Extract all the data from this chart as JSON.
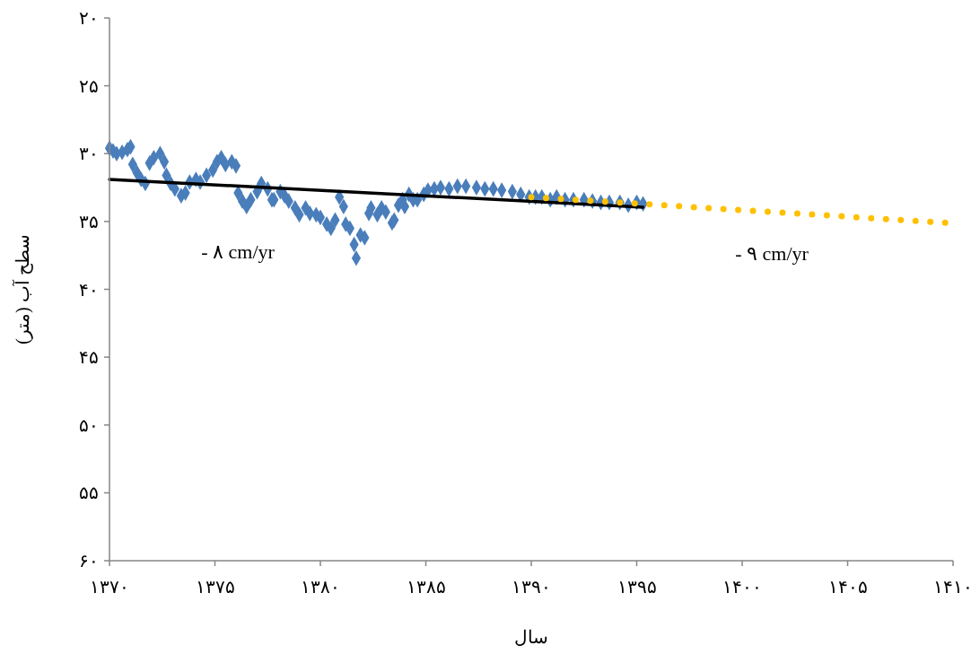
{
  "chart_data": {
    "type": "scatter",
    "xlabel": "سال",
    "ylabel": "سطح آب (متر)",
    "xlim": [
      1370,
      1410
    ],
    "ylim": [
      60,
      20
    ],
    "xticks": [
      {
        "value": 1370,
        "label": "۱۳۷۰"
      },
      {
        "value": 1375,
        "label": "۱۳۷۵"
      },
      {
        "value": 1380,
        "label": "۱۳۸۰"
      },
      {
        "value": 1385,
        "label": "۱۳۸۵"
      },
      {
        "value": 1390,
        "label": "۱۳۹۰"
      },
      {
        "value": 1395,
        "label": "۱۳۹۵"
      },
      {
        "value": 1400,
        "label": "۱۴۰۰"
      },
      {
        "value": 1405,
        "label": "۱۴۰۵"
      },
      {
        "value": 1410,
        "label": "۱۴۱۰"
      }
    ],
    "yticks": [
      {
        "value": 20,
        "label": "۲۰"
      },
      {
        "value": 25,
        "label": "۲۵"
      },
      {
        "value": 30,
        "label": "۳۰"
      },
      {
        "value": 35,
        "label": "۳۵"
      },
      {
        "value": 40,
        "label": "۴۰"
      },
      {
        "value": 45,
        "label": "۴۵"
      },
      {
        "value": 50,
        "label": "۵۰"
      },
      {
        "value": 55,
        "label": "۵۵"
      },
      {
        "value": 60,
        "label": "۶۰"
      }
    ],
    "grid": false,
    "series": [
      {
        "marker": "diamond",
        "color": "#4a7ebb",
        "x": [
          1370.0,
          1370.17,
          1370.34,
          1370.6,
          1370.85,
          1371.0,
          1371.1,
          1371.3,
          1371.5,
          1371.7,
          1371.9,
          1372.1,
          1372.4,
          1372.6,
          1372.7,
          1372.9,
          1373.1,
          1373.4,
          1373.6,
          1373.8,
          1374.1,
          1374.3,
          1374.6,
          1374.9,
          1375.1,
          1375.3,
          1375.5,
          1375.8,
          1376.0,
          1376.1,
          1376.3,
          1376.5,
          1376.7,
          1377.0,
          1377.2,
          1377.5,
          1377.7,
          1377.8,
          1378.1,
          1378.3,
          1378.5,
          1378.8,
          1379.0,
          1379.3,
          1379.5,
          1379.8,
          1380.0,
          1380.3,
          1380.5,
          1380.7,
          1380.9,
          1381.1,
          1381.2,
          1381.4,
          1381.6,
          1381.7,
          1381.9,
          1382.1,
          1382.3,
          1382.4,
          1382.7,
          1382.9,
          1383.1,
          1383.4,
          1383.5,
          1383.7,
          1383.9,
          1384.0,
          1384.2,
          1384.4,
          1384.6,
          1384.9,
          1385.1,
          1385.4,
          1385.7,
          1386.1,
          1386.5,
          1386.9,
          1387.4,
          1387.8,
          1388.2,
          1388.6,
          1389.1,
          1389.5,
          1389.9,
          1390.2,
          1390.5,
          1390.9,
          1391.2,
          1391.6,
          1392.0,
          1392.5,
          1392.9,
          1393.3,
          1393.7,
          1394.2,
          1394.6,
          1395.0,
          1395.3
        ],
        "values": [
          29.6,
          29.8,
          30.0,
          29.9,
          29.7,
          29.5,
          30.8,
          31.4,
          31.9,
          32.2,
          30.7,
          30.3,
          30.0,
          30.6,
          31.6,
          32.2,
          32.6,
          33.1,
          32.9,
          32.1,
          31.9,
          32.1,
          31.6,
          31.2,
          30.6,
          30.3,
          30.8,
          30.6,
          30.9,
          32.9,
          33.5,
          33.9,
          33.4,
          32.8,
          32.2,
          32.6,
          33.4,
          33.4,
          32.8,
          33.1,
          33.5,
          34.0,
          34.5,
          34.0,
          34.4,
          34.5,
          34.7,
          35.2,
          35.5,
          34.9,
          33.2,
          33.9,
          35.2,
          35.5,
          36.7,
          37.7,
          36.0,
          36.2,
          34.4,
          34.0,
          34.5,
          34.0,
          34.3,
          35.1,
          34.9,
          33.8,
          33.4,
          33.9,
          33.0,
          33.4,
          33.4,
          33.0,
          32.7,
          32.6,
          32.5,
          32.6,
          32.4,
          32.4,
          32.5,
          32.6,
          32.6,
          32.7,
          32.8,
          33.0,
          33.2,
          33.2,
          33.2,
          33.4,
          33.2,
          33.4,
          33.4,
          33.4,
          33.5,
          33.6,
          33.6,
          33.6,
          33.8,
          33.6,
          33.7
        ]
      },
      {
        "type": "line",
        "color": "#000000",
        "line_style": "solid",
        "x": [
          1370,
          1395.3
        ],
        "values": [
          31.9,
          33.95
        ]
      },
      {
        "type": "line",
        "color": "#ffc000",
        "line_style": "dotted",
        "x": [
          1390,
          1409.7
        ],
        "values": [
          33.2,
          35.1
        ]
      }
    ],
    "annotations": [
      "- ۸ cm/yr",
      "- ۹ cm/yr"
    ]
  }
}
